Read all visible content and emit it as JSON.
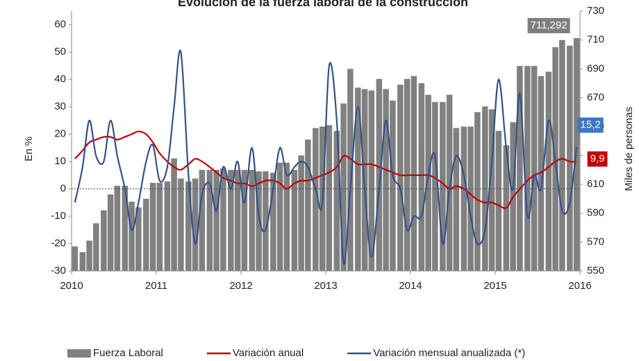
{
  "chart_data": {
    "type": "combo",
    "title": "Evolución de la fuerza laboral de la construcción",
    "y_label": "En %",
    "y2_label": "Miles de personas",
    "xlim": [
      2010,
      2016
    ],
    "xticks": [
      2010,
      2011,
      2012,
      2013,
      2014,
      2015,
      2016
    ],
    "ylim": [
      -30,
      65
    ],
    "yticks": [
      -30,
      -20,
      -10,
      0,
      10,
      20,
      30,
      40,
      50,
      60
    ],
    "y2lim": [
      550,
      730
    ],
    "y2ticks": [
      550,
      570,
      590,
      610,
      630,
      650,
      670,
      690,
      710,
      730
    ],
    "x": [
      2010.04,
      2010.13,
      2010.21,
      2010.29,
      2010.38,
      2010.46,
      2010.54,
      2010.63,
      2010.71,
      2010.79,
      2010.88,
      2010.96,
      2011.04,
      2011.13,
      2011.21,
      2011.29,
      2011.38,
      2011.46,
      2011.54,
      2011.63,
      2011.71,
      2011.79,
      2011.88,
      2011.96,
      2012.04,
      2012.13,
      2012.21,
      2012.29,
      2012.38,
      2012.46,
      2012.54,
      2012.63,
      2012.71,
      2012.79,
      2012.88,
      2012.96,
      2013.04,
      2013.13,
      2013.21,
      2013.29,
      2013.38,
      2013.46,
      2013.54,
      2013.63,
      2013.71,
      2013.79,
      2013.88,
      2013.96,
      2014.04,
      2014.13,
      2014.21,
      2014.29,
      2014.38,
      2014.46,
      2014.54,
      2014.63,
      2014.71,
      2014.79,
      2014.88,
      2014.96,
      2015.04,
      2015.13,
      2015.21,
      2015.29,
      2015.38,
      2015.46,
      2015.54,
      2015.63,
      2015.71,
      2015.79,
      2015.88,
      2015.96
    ],
    "series": [
      {
        "name": "Fuerza Laboral",
        "type": "bar",
        "axis": "y2",
        "color": "#808080",
        "label_color": "#7f7f7f",
        "values": [
          567,
          563,
          571,
          583,
          592,
          603,
          609,
          609,
          598,
          594,
          600,
          611,
          611,
          612,
          628,
          614,
          612,
          614,
          620,
          620,
          620,
          621,
          620,
          620,
          620,
          620,
          619,
          619,
          618,
          625,
          625,
          620,
          630,
          641,
          649,
          650,
          651,
          647,
          666,
          690,
          677,
          676,
          675,
          683,
          676,
          668,
          679,
          683,
          685,
          680,
          672,
          667,
          667,
          672,
          649,
          650,
          650,
          660,
          664,
          662,
          647,
          637,
          653,
          692,
          692,
          692,
          685,
          688,
          705,
          710,
          706,
          711.292
        ],
        "value_labels": [
          null,
          null,
          null,
          null,
          null,
          null,
          null,
          null,
          null,
          null,
          null,
          null,
          null,
          null,
          null,
          null,
          null,
          null,
          null,
          null,
          null,
          null,
          null,
          null,
          null,
          null,
          null,
          null,
          null,
          null,
          null,
          null,
          null,
          null,
          null,
          null,
          null,
          null,
          null,
          null,
          null,
          null,
          null,
          null,
          null,
          null,
          null,
          null,
          null,
          null,
          null,
          null,
          null,
          null,
          null,
          null,
          null,
          null,
          null,
          null,
          null,
          null,
          null,
          null,
          null,
          null,
          null,
          null,
          null,
          null,
          null,
          "711,292"
        ]
      },
      {
        "name": "Variación anual",
        "type": "line",
        "color": "#c00000",
        "label_color": "#c00000",
        "values": [
          11,
          14,
          17,
          18,
          19,
          19,
          18,
          19,
          20,
          21,
          20,
          17,
          13,
          10,
          8,
          7,
          9,
          11,
          10,
          8,
          6,
          4,
          3,
          2,
          2,
          1,
          2,
          3,
          3,
          2,
          0,
          2,
          3,
          3,
          4,
          5,
          6,
          8,
          12,
          11,
          9,
          9,
          9,
          8,
          7,
          6,
          5,
          5,
          5,
          5,
          5,
          4,
          2,
          0,
          1,
          0,
          -2,
          -4,
          -5,
          -5,
          -6,
          -7,
          -3,
          0,
          3,
          5,
          6,
          8,
          10,
          11,
          10,
          9.9
        ],
        "value_labels": [
          null,
          null,
          null,
          null,
          null,
          null,
          null,
          null,
          null,
          null,
          null,
          null,
          null,
          null,
          null,
          null,
          null,
          null,
          null,
          null,
          null,
          null,
          null,
          null,
          null,
          null,
          null,
          null,
          null,
          null,
          null,
          null,
          null,
          null,
          null,
          null,
          null,
          null,
          null,
          null,
          null,
          null,
          null,
          null,
          null,
          null,
          null,
          null,
          null,
          null,
          null,
          null,
          null,
          null,
          null,
          null,
          null,
          null,
          null,
          null,
          null,
          null,
          null,
          null,
          null,
          null,
          null,
          null,
          null,
          null,
          null,
          "9,9"
        ]
      },
      {
        "name": "Variación mensual anualizada (*)",
        "type": "line",
        "color": "#34508a",
        "label_color": "#3b78c8",
        "values": [
          -5,
          8,
          25,
          12,
          10,
          25,
          12,
          0,
          -15,
          -5,
          10,
          16,
          3,
          8,
          30,
          50,
          5,
          -20,
          -2,
          2,
          -8,
          8,
          0,
          10,
          -5,
          15,
          -10,
          -15,
          0,
          15,
          5,
          8,
          10,
          8,
          0,
          -5,
          45,
          25,
          -27,
          0,
          30,
          0,
          -25,
          0,
          25,
          5,
          0,
          -15,
          -10,
          -10,
          5,
          12,
          -20,
          0,
          12,
          5,
          -10,
          -20,
          -15,
          10,
          40,
          15,
          0,
          35,
          -10,
          5,
          0,
          25,
          10,
          -8,
          -5,
          15.2
        ],
        "value_labels": [
          null,
          null,
          null,
          null,
          null,
          null,
          null,
          null,
          null,
          null,
          null,
          null,
          null,
          null,
          null,
          null,
          null,
          null,
          null,
          null,
          null,
          null,
          null,
          null,
          null,
          null,
          null,
          null,
          null,
          null,
          null,
          null,
          null,
          null,
          null,
          null,
          null,
          null,
          null,
          null,
          null,
          null,
          null,
          null,
          null,
          null,
          null,
          null,
          null,
          null,
          null,
          null,
          null,
          null,
          null,
          null,
          null,
          null,
          null,
          null,
          null,
          null,
          null,
          null,
          null,
          null,
          null,
          null,
          null,
          null,
          null,
          "15,2"
        ]
      }
    ]
  }
}
